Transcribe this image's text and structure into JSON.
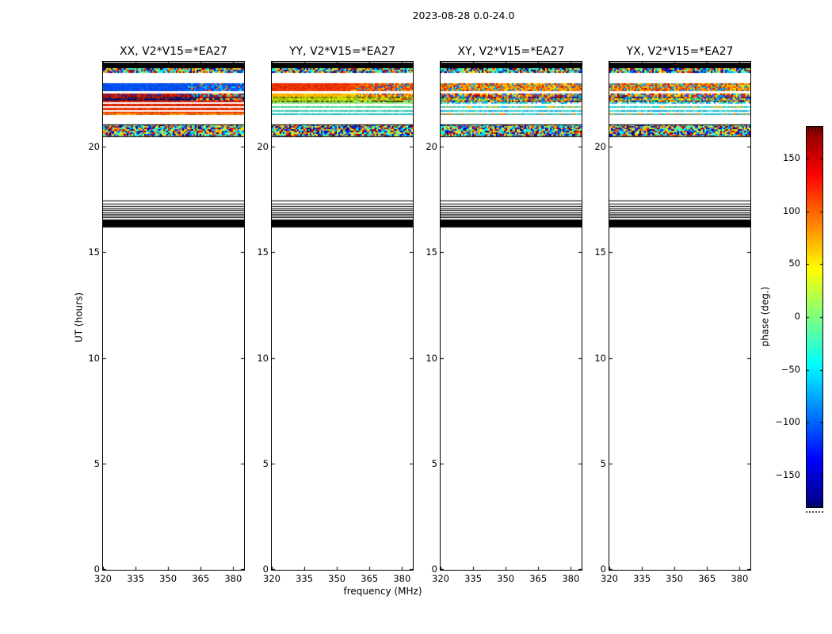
{
  "chart_data": {
    "type": "heatmap",
    "title": "2023-08-28 0.0-24.0",
    "xlabel": "frequency (MHz)",
    "ylabel": "UT (hours)",
    "xlim": [
      320,
      385
    ],
    "ylim": [
      0,
      24
    ],
    "xticks": [
      320,
      335,
      350,
      365,
      380
    ],
    "yticks": [
      0,
      5,
      10,
      15,
      20
    ],
    "grid": false,
    "colorbar": {
      "label": "phase (deg.)",
      "cmap": "jet",
      "vmin": -180,
      "vmax": 180,
      "tick_values": [
        150,
        100,
        50,
        0,
        -50,
        -100,
        -150
      ],
      "tick_labels": [
        "150",
        "100",
        "50",
        "0",
        "−50",
        "−100",
        "−150"
      ],
      "gradient_stops": [
        [
          0.0,
          "#000080"
        ],
        [
          0.125,
          "#0000ff"
        ],
        [
          0.375,
          "#00ffff"
        ],
        [
          0.625,
          "#ffff00"
        ],
        [
          0.875,
          "#ff0000"
        ],
        [
          1.0,
          "#7f0000"
        ]
      ]
    },
    "jet_palette": [
      "#00007f",
      "#0000c8",
      "#0032ff",
      "#0096ff",
      "#00d4e8",
      "#2cffc8",
      "#8cff69",
      "#e6f232",
      "#ffb400",
      "#ff5a00",
      "#e61400",
      "#960000",
      "#ffdc00",
      "#00ffff"
    ],
    "common_bands": [
      {
        "y": [
          23.7,
          23.97
        ],
        "mode": "solid",
        "color": "#000000"
      },
      {
        "y": [
          23.46,
          23.7
        ],
        "mode": "speckle",
        "palette": "jet"
      },
      {
        "y": [
          20.43,
          21.05
        ],
        "mode": "speckle",
        "palette": "jet",
        "edges": true
      },
      {
        "mode": "hlines",
        "color": "#000000",
        "lines": [
          17.43,
          17.31,
          17.2,
          17.09,
          16.99,
          16.9,
          16.82,
          16.74,
          16.66
        ]
      },
      {
        "y": [
          16.19,
          16.56
        ],
        "mode": "solid",
        "color": "#000000"
      }
    ],
    "panels": [
      {
        "id": "xx",
        "title": "XX, V2*V15=*EA27",
        "seed": 12345,
        "bands": [
          {
            "y": [
              22.6,
              22.99
            ],
            "mode": "speckle",
            "split": 0.6,
            "colors": [
              "#0048e8",
              "#0050f0",
              "#0058ff",
              "#1060f0",
              "#0044dc",
              "#0050f0"
            ],
            "colors2": [
              "#0050f0",
              "#00a0ff",
              "#0038c0",
              "#ff7800",
              "#00d0ff",
              "#0058ff",
              "#0060ff",
              "#0050f0",
              "#e63200",
              "#0058ff"
            ]
          },
          {
            "y": [
              21.53,
              22.52
            ],
            "mode": "rows",
            "rows": [
              {
                "f": 0.14,
                "mode": "speckle",
                "split": 0.62,
                "colors": [
                  "#c81000",
                  "#e02800",
                  "#980c00",
                  "#2030a8"
                ],
                "colors2": [
                  "#c81000",
                  "#2030a8",
                  "#ffb400",
                  "#00c8e6",
                  "#e02800"
                ]
              },
              {
                "f": 0.07,
                "mode": "speckle",
                "colors": [
                  "#141e78",
                  "#b41400",
                  "#0a1464",
                  "#cc2200"
                ]
              },
              {
                "f": 0.12,
                "mode": "speckle",
                "split": 0.62,
                "colors": [
                  "#0a1060",
                  "#131c7c",
                  "#061048",
                  "#a81000"
                ],
                "colors2": [
                  "#0a1060",
                  "#ffb400",
                  "#e63200",
                  "#131c7c",
                  "#00a0c8"
                ]
              },
              {
                "f": 0.09,
                "mode": "speckle",
                "colors": [
                  "#d41800",
                  "#e62800",
                  "#c01400"
                ]
              },
              {
                "f": 0.09,
                "mode": "solid",
                "color": "#ffffff"
              },
              {
                "f": 0.1,
                "mode": "speckle",
                "colors": [
                  "#d81c00",
                  "#ec3400",
                  "#c81800"
                ]
              },
              {
                "f": 0.07,
                "mode": "solid",
                "color": "#ffffff"
              },
              {
                "f": 0.1,
                "mode": "speckle",
                "colors": [
                  "#e02400",
                  "#f04400",
                  "#d82000"
                ]
              },
              {
                "f": 0.07,
                "mode": "solid",
                "color": "#ffffff"
              },
              {
                "f": 0.09,
                "mode": "speckle",
                "colors": [
                  "#ee5200",
                  "#e03000",
                  "#f04800"
                ]
              },
              {
                "f": 0.06,
                "mode": "speckle",
                "colors": [
                  "#f07800",
                  "#e85000",
                  "#ffa000"
                ]
              }
            ]
          }
        ]
      },
      {
        "id": "yy",
        "title": "YY, V2*V15=*EA27",
        "seed": 54321,
        "bands": [
          {
            "y": [
              22.6,
              22.99
            ],
            "mode": "speckle",
            "split": 0.55,
            "colors": [
              "#e83000",
              "#f03800",
              "#e02800",
              "#f84800",
              "#d82400",
              "#f03800"
            ],
            "colors2": [
              "#f04000",
              "#ff8000",
              "#e02800",
              "#2050e0",
              "#ffb400",
              "#f03800",
              "#ff5000",
              "#f04000",
              "#00b4dc"
            ]
          },
          {
            "y": [
              21.53,
              22.52
            ],
            "mode": "rows",
            "rows": [
              {
                "f": 0.14,
                "mode": "speckle",
                "split": 0.6,
                "colors": [
                  "#ffb000",
                  "#ffc400",
                  "#ff9800",
                  "#f0d800"
                ],
                "colors2": [
                  "#ffb000",
                  "#ff7800",
                  "#2050e0",
                  "#ffe000",
                  "#e02800"
                ]
              },
              {
                "f": 0.07,
                "mode": "speckle",
                "colors": [
                  "#788000",
                  "#98b000",
                  "#384000",
                  "#c8d800"
                ]
              },
              {
                "f": 0.12,
                "mode": "speckle",
                "split": 0.6,
                "colors": [
                  "#c8e400",
                  "#b8d400",
                  "#d8f000",
                  "#a0c000"
                ],
                "colors2": [
                  "#c8e400",
                  "#ffb000",
                  "#00c8d0",
                  "#d8f000",
                  "#e63200"
                ]
              },
              {
                "f": 0.09,
                "mode": "speckle",
                "colors": [
                  "#284800",
                  "#4a7000",
                  "#98e060"
                ]
              },
              {
                "f": 0.09,
                "mode": "speckle",
                "colors": [
                  "#96e67d",
                  "#aaf08c",
                  "#88dc70"
                ]
              },
              {
                "f": 0.1,
                "mode": "solid",
                "color": "#ffffff"
              },
              {
                "f": 0.07,
                "mode": "speckle",
                "colors": [
                  "#50d296",
                  "#64e6a0",
                  "#46c88c"
                ]
              },
              {
                "f": 0.1,
                "mode": "solid",
                "color": "#ffffff"
              },
              {
                "f": 0.09,
                "mode": "speckle",
                "colors": [
                  "#3cc8b4",
                  "#50dcc8",
                  "#32bea0"
                ]
              },
              {
                "f": 0.07,
                "mode": "solid",
                "color": "#ffffff"
              },
              {
                "f": 0.06,
                "mode": "speckle",
                "colors": [
                  "#2fc8c8",
                  "#46d7d2",
                  "#28b8c0"
                ]
              }
            ]
          }
        ]
      },
      {
        "id": "xy",
        "title": "XY, V2*V15=*EA27",
        "seed": 77777,
        "bands": [
          {
            "y": [
              22.6,
              22.99
            ],
            "mode": "speckle",
            "colors": [
              "#ff9000",
              "#ffb400",
              "#e65000",
              "#2864f0",
              "#ffdc00",
              "#c81e00",
              "#00b4dc",
              "#ff7800",
              "#f0a000"
            ]
          },
          {
            "y": [
              21.53,
              22.52
            ],
            "mode": "rows",
            "rows": [
              {
                "f": 0.14,
                "mode": "speckle",
                "colors": [
                  "#ff8c00",
                  "#e62800",
                  "#1e50ff",
                  "#ffc800",
                  "#00c8e6",
                  "#b40000",
                  "#ffe600"
                ]
              },
              {
                "f": 0.07,
                "mode": "speckle",
                "colors": [
                  "#1e28a0",
                  "#b41400",
                  "#00a0c8",
                  "#ff9600",
                  "#101870"
                ]
              },
              {
                "f": 0.12,
                "mode": "speckle",
                "colors": [
                  "#ffb400",
                  "#1e50ff",
                  "#e63200",
                  "#00d2dc",
                  "#ffe600",
                  "#28c828"
                ]
              },
              {
                "f": 0.09,
                "mode": "speckle",
                "colors": [
                  "#101870",
                  "#e63200",
                  "#00a0c8",
                  "#ffb400"
                ]
              },
              {
                "f": 0.09,
                "mode": "speckle",
                "colors": [
                  "#00d2dc",
                  "#46e6c8",
                  "#1e90ff",
                  "#ffffff",
                  "#80e8d0"
                ]
              },
              {
                "f": 0.1,
                "mode": "solid",
                "color": "#ffffff"
              },
              {
                "f": 0.07,
                "mode": "speckle",
                "colors": [
                  "#00d2dc",
                  "#50e0c8",
                  "#28b8e0",
                  "#ffb400"
                ]
              },
              {
                "f": 0.1,
                "mode": "solid",
                "color": "#ffffff"
              },
              {
                "f": 0.09,
                "mode": "speckle",
                "colors": [
                  "#30c8c8",
                  "#50dcd2",
                  "#1ea0e0"
                ]
              },
              {
                "f": 0.07,
                "mode": "solid",
                "color": "#ffffff"
              },
              {
                "f": 0.06,
                "mode": "speckle",
                "colors": [
                  "#2fc8c8",
                  "#46d7d2",
                  "#f08000",
                  "#28b0d0"
                ]
              }
            ]
          }
        ]
      },
      {
        "id": "yx",
        "title": "YX, V2*V15=*EA27",
        "seed": 24680,
        "bands": [
          {
            "y": [
              22.6,
              22.99
            ],
            "mode": "speckle",
            "colors": [
              "#ffaa00",
              "#ff8c00",
              "#d23c00",
              "#3c78ff",
              "#ffe100",
              "#00bee6",
              "#eb5a00",
              "#c81e00",
              "#f0b400"
            ]
          },
          {
            "y": [
              21.53,
              22.52
            ],
            "mode": "rows",
            "rows": [
              {
                "f": 0.14,
                "mode": "speckle",
                "colors": [
                  "#ff9600",
                  "#e62800",
                  "#2850ff",
                  "#ffc800",
                  "#00c8e6",
                  "#a00000",
                  "#ffe600"
                ]
              },
              {
                "f": 0.07,
                "mode": "speckle",
                "colors": [
                  "#1e28a0",
                  "#c81400",
                  "#00a0c8",
                  "#ffa000",
                  "#101870"
                ]
              },
              {
                "f": 0.12,
                "mode": "speckle",
                "colors": [
                  "#ffb400",
                  "#2850ff",
                  "#e63200",
                  "#00d2dc",
                  "#f0e600",
                  "#32c832"
                ]
              },
              {
                "f": 0.09,
                "mode": "speckle",
                "colors": [
                  "#141e78",
                  "#e63200",
                  "#00a0c8",
                  "#ffc800"
                ]
              },
              {
                "f": 0.09,
                "mode": "speckle",
                "colors": [
                  "#00d2dc",
                  "#46e6c8",
                  "#2890ff",
                  "#ffffff",
                  "#80e8d0"
                ]
              },
              {
                "f": 0.1,
                "mode": "solid",
                "color": "#ffffff"
              },
              {
                "f": 0.07,
                "mode": "speckle",
                "colors": [
                  "#00d2dc",
                  "#50e0c8",
                  "#28b8e0",
                  "#ffb400"
                ]
              },
              {
                "f": 0.1,
                "mode": "solid",
                "color": "#ffffff"
              },
              {
                "f": 0.09,
                "mode": "speckle",
                "colors": [
                  "#30c8c8",
                  "#50dcd2",
                  "#1ea0e0"
                ]
              },
              {
                "f": 0.07,
                "mode": "solid",
                "color": "#ffffff"
              },
              {
                "f": 0.06,
                "mode": "speckle",
                "colors": [
                  "#2fc8c8",
                  "#46d7d2",
                  "#f08000",
                  "#28b0d0"
                ]
              }
            ]
          }
        ]
      }
    ]
  }
}
